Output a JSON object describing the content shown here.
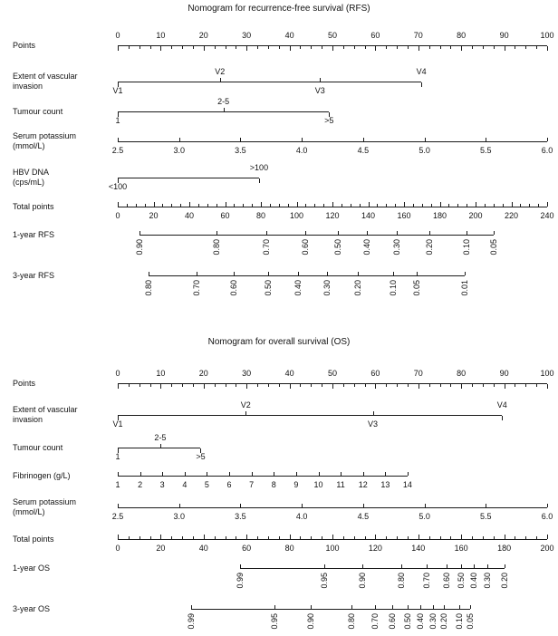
{
  "chart_data": {
    "type": "nomogram",
    "background": "#ffffff",
    "line_color": "#1a1a1a",
    "text_color": "#111111",
    "nomograms": [
      {
        "id": "rfs",
        "title": "Nomogram for recurrence-free survival (RFS)",
        "rows": [
          {
            "id": "points",
            "kind": "ruler",
            "label": [
              "Points"
            ],
            "scale_max": 100,
            "extent": [
              0,
              100
            ],
            "tick_side": "down",
            "label_side": "above",
            "major_step": 10,
            "minor_step": 2.5,
            "major_ticks": [
              0,
              10,
              20,
              30,
              40,
              50,
              60,
              70,
              80,
              90,
              100
            ]
          },
          {
            "id": "vascular-invasion",
            "kind": "category",
            "label": [
              "Extent of vascular",
              "invasion"
            ],
            "scale_max": 100,
            "extent": [
              0,
              70.7
            ],
            "ticks": [
              {
                "v": "V1",
                "p": 0,
                "side": "below"
              },
              {
                "v": "V2",
                "p": 23.8,
                "side": "above"
              },
              {
                "v": "V3",
                "p": 47.1,
                "side": "below"
              },
              {
                "v": "V4",
                "p": 70.7,
                "side": "above"
              }
            ]
          },
          {
            "id": "tumour-count",
            "kind": "category",
            "label": [
              "Tumour count"
            ],
            "scale_max": 100,
            "extent": [
              0,
              49.2
            ],
            "ticks": [
              {
                "v": "1",
                "p": 0,
                "side": "below"
              },
              {
                "v": "2-5",
                "p": 24.6,
                "side": "above"
              },
              {
                "v": ">5",
                "p": 49.2,
                "side": "below"
              }
            ]
          },
          {
            "id": "serum-potassium",
            "kind": "scale",
            "label": [
              "Serum potassium",
              "(mmol/L)"
            ],
            "scale_max": 100,
            "extent": [
              0,
              100
            ],
            "ticks": [
              {
                "v": "2.5",
                "p": 0
              },
              {
                "v": "3.0",
                "p": 14.29
              },
              {
                "v": "3.5",
                "p": 28.57
              },
              {
                "v": "4.0",
                "p": 42.86
              },
              {
                "v": "4.5",
                "p": 57.14
              },
              {
                "v": "5.0",
                "p": 71.43
              },
              {
                "v": "5.5",
                "p": 85.71
              },
              {
                "v": "6.0",
                "p": 100
              }
            ]
          },
          {
            "id": "hbv-dna",
            "kind": "category",
            "label": [
              "HBV DNA",
              "(cps/mL)"
            ],
            "scale_max": 100,
            "extent": [
              0,
              32.9
            ],
            "ticks": [
              {
                "v": "<100",
                "p": 0,
                "side": "below"
              },
              {
                "v": ">100",
                "p": 32.9,
                "side": "above"
              }
            ]
          },
          {
            "id": "total-points",
            "kind": "ruler",
            "label": [
              "Total points"
            ],
            "scale_max": 240,
            "extent": [
              0,
              240
            ],
            "tick_side": "up",
            "label_side": "below",
            "major_step": 20,
            "minor_step": 5,
            "major_ticks": [
              0,
              20,
              40,
              60,
              80,
              100,
              120,
              140,
              160,
              180,
              200,
              220,
              240
            ]
          },
          {
            "id": "rfs-1yr",
            "kind": "survival",
            "label": [
              "1-year RFS"
            ],
            "scale_max": 240,
            "extent": [
              12,
              210
            ],
            "ticks": [
              {
                "v": "0.90",
                "p": 12
              },
              {
                "v": "0.80",
                "p": 55
              },
              {
                "v": "0.70",
                "p": 83
              },
              {
                "v": "0.60",
                "p": 105
              },
              {
                "v": "0.50",
                "p": 123
              },
              {
                "v": "0.40",
                "p": 139
              },
              {
                "v": "0.30",
                "p": 156
              },
              {
                "v": "0.20",
                "p": 174
              },
              {
                "v": "0.10",
                "p": 195
              },
              {
                "v": "0.05",
                "p": 210
              }
            ]
          },
          {
            "id": "rfs-3yr",
            "kind": "survival",
            "label": [
              "3-year RFS"
            ],
            "scale_max": 240,
            "extent": [
              17,
              194
            ],
            "ticks": [
              {
                "v": "0.80",
                "p": 17
              },
              {
                "v": "0.70",
                "p": 44
              },
              {
                "v": "0.60",
                "p": 65
              },
              {
                "v": "0.50",
                "p": 84
              },
              {
                "v": "0.40",
                "p": 101
              },
              {
                "v": "0.30",
                "p": 117
              },
              {
                "v": "0.20",
                "p": 134
              },
              {
                "v": "0.10",
                "p": 154
              },
              {
                "v": "0.05",
                "p": 167
              },
              {
                "v": "0.01",
                "p": 194
              }
            ]
          }
        ]
      },
      {
        "id": "os",
        "title": "Nomogram for overall survival (OS)",
        "rows": [
          {
            "id": "points",
            "kind": "ruler",
            "label": [
              "Points"
            ],
            "scale_max": 100,
            "extent": [
              0,
              100
            ],
            "tick_side": "down",
            "label_side": "above",
            "major_step": 10,
            "minor_step": 2.5,
            "major_ticks": [
              0,
              10,
              20,
              30,
              40,
              50,
              60,
              70,
              80,
              90,
              100
            ]
          },
          {
            "id": "vascular-invasion",
            "kind": "category",
            "label": [
              "Extent of vascular",
              "invasion"
            ],
            "scale_max": 100,
            "extent": [
              0,
              89.5
            ],
            "ticks": [
              {
                "v": "V1",
                "p": 0,
                "side": "below"
              },
              {
                "v": "V2",
                "p": 29.8,
                "side": "above"
              },
              {
                "v": "V3",
                "p": 59.4,
                "side": "below"
              },
              {
                "v": "V4",
                "p": 89.5,
                "side": "above"
              }
            ]
          },
          {
            "id": "tumour-count",
            "kind": "category",
            "label": [
              "Tumour count"
            ],
            "scale_max": 100,
            "extent": [
              0,
              19.3
            ],
            "ticks": [
              {
                "v": "1",
                "p": 0,
                "side": "below"
              },
              {
                "v": "2-5",
                "p": 9.9,
                "side": "above"
              },
              {
                "v": ">5",
                "p": 19.3,
                "side": "below"
              }
            ]
          },
          {
            "id": "fibrinogen",
            "kind": "scale",
            "label": [
              "Fibrinogen (g/L)"
            ],
            "scale_max": 100,
            "extent": [
              0,
              67.5
            ],
            "ticks": [
              {
                "v": "1",
                "p": 0
              },
              {
                "v": "2",
                "p": 5.19
              },
              {
                "v": "3",
                "p": 10.38
              },
              {
                "v": "4",
                "p": 15.58
              },
              {
                "v": "5",
                "p": 20.77
              },
              {
                "v": "6",
                "p": 25.96
              },
              {
                "v": "7",
                "p": 31.15
              },
              {
                "v": "8",
                "p": 36.35
              },
              {
                "v": "9",
                "p": 41.54
              },
              {
                "v": "10",
                "p": 46.73
              },
              {
                "v": "11",
                "p": 51.92
              },
              {
                "v": "12",
                "p": 57.12
              },
              {
                "v": "13",
                "p": 62.31
              },
              {
                "v": "14",
                "p": 67.5
              }
            ]
          },
          {
            "id": "serum-potassium",
            "kind": "scale",
            "label": [
              "Serum potassium",
              "(mmol/L)"
            ],
            "scale_max": 100,
            "extent": [
              0,
              100
            ],
            "ticks": [
              {
                "v": "2.5",
                "p": 0
              },
              {
                "v": "3.0",
                "p": 14.29
              },
              {
                "v": "3.5",
                "p": 28.57
              },
              {
                "v": "4.0",
                "p": 42.86
              },
              {
                "v": "4.5",
                "p": 57.14
              },
              {
                "v": "5.0",
                "p": 71.43
              },
              {
                "v": "5.5",
                "p": 85.71
              },
              {
                "v": "6.0",
                "p": 100
              }
            ]
          },
          {
            "id": "total-points",
            "kind": "ruler",
            "label": [
              "Total points"
            ],
            "scale_max": 200,
            "extent": [
              0,
              200
            ],
            "tick_side": "up",
            "label_side": "below",
            "major_step": 20,
            "minor_step": 5,
            "major_ticks": [
              0,
              20,
              40,
              60,
              80,
              100,
              120,
              140,
              160,
              180,
              200
            ]
          },
          {
            "id": "os-1yr",
            "kind": "survival",
            "label": [
              "1-year OS"
            ],
            "scale_max": 200,
            "extent": [
              57,
              180
            ],
            "ticks": [
              {
                "v": "0.99",
                "p": 57
              },
              {
                "v": "0.95",
                "p": 96
              },
              {
                "v": "0.90",
                "p": 114
              },
              {
                "v": "0.80",
                "p": 132
              },
              {
                "v": "0.70",
                "p": 144
              },
              {
                "v": "0.60",
                "p": 153
              },
              {
                "v": "0.50",
                "p": 160
              },
              {
                "v": "0.40",
                "p": 166
              },
              {
                "v": "0.30",
                "p": 172
              },
              {
                "v": "0.20",
                "p": 180
              }
            ]
          },
          {
            "id": "os-3yr",
            "kind": "survival",
            "label": [
              "3-year OS"
            ],
            "scale_max": 200,
            "extent": [
              34,
              164
            ],
            "ticks": [
              {
                "v": "0.99",
                "p": 34
              },
              {
                "v": "0.95",
                "p": 73
              },
              {
                "v": "0.90",
                "p": 90
              },
              {
                "v": "0.80",
                "p": 109
              },
              {
                "v": "0.70",
                "p": 120
              },
              {
                "v": "0.60",
                "p": 128
              },
              {
                "v": "0.50",
                "p": 135
              },
              {
                "v": "0.40",
                "p": 141
              },
              {
                "v": "0.30",
                "p": 147
              },
              {
                "v": "0.20",
                "p": 152
              },
              {
                "v": "0.10",
                "p": 159
              },
              {
                "v": "0.05",
                "p": 164
              }
            ]
          }
        ]
      }
    ]
  }
}
